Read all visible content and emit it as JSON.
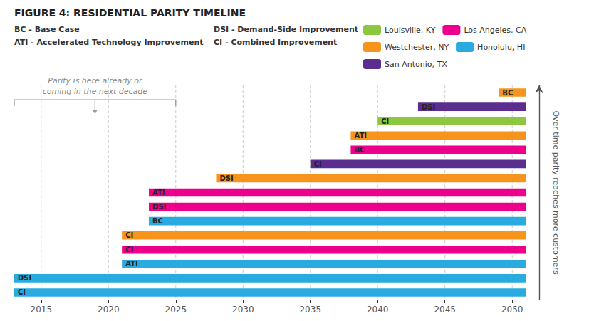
{
  "chart_data": {
    "type": "bar",
    "orientation": "horizontal",
    "title": "FIGURE 4: RESIDENTIAL PARITY TIMELINE",
    "ylabel": "Over time parity reaches more customers",
    "annotations": [
      "BC - Base Case",
      "ATI - Accelerated Technology Improvement",
      "DSI - Demand-Side Improvement",
      "CI - Combined Improvement"
    ],
    "bracket": {
      "text": "Parity is here already or\ncoming in the next decade",
      "x": [
        2013,
        2025
      ]
    },
    "categories": [
      null,
      null,
      null,
      null,
      null,
      null,
      null,
      null,
      null,
      null,
      null,
      null,
      null,
      null,
      null
    ],
    "series": [
      {
        "name": "Louisville, KY",
        "color": "#8dc63f",
        "values": [
          null,
          null,
          null,
          null,
          null,
          null,
          null,
          null,
          null,
          null,
          null,
          null,
          [
            2040,
            2051
          ],
          null,
          null
        ],
        "bar_labels": [
          null,
          null,
          null,
          null,
          null,
          null,
          null,
          null,
          null,
          null,
          null,
          null,
          "CI",
          null,
          null
        ]
      },
      {
        "name": "Los Angeles, CA",
        "color": "#ec008c",
        "values": [
          null,
          null,
          null,
          [
            2021,
            2051
          ],
          null,
          null,
          [
            2023,
            2051
          ],
          [
            2023,
            2051
          ],
          null,
          null,
          [
            2038,
            2051
          ],
          null,
          null,
          null,
          null
        ],
        "bar_labels": [
          null,
          null,
          null,
          "CI",
          null,
          null,
          "DSI",
          "ATI",
          null,
          null,
          "BC",
          null,
          null,
          null,
          null
        ]
      },
      {
        "name": "Westchester, NY",
        "color": "#f7941d",
        "values": [
          null,
          null,
          null,
          null,
          [
            2021,
            2051
          ],
          null,
          null,
          null,
          [
            2028,
            2051
          ],
          null,
          null,
          [
            2038,
            2051
          ],
          null,
          null,
          [
            2049,
            2051
          ]
        ],
        "bar_labels": [
          null,
          null,
          null,
          null,
          "CI",
          null,
          null,
          null,
          "DSI",
          null,
          null,
          "ATI",
          null,
          null,
          "BC"
        ]
      },
      {
        "name": "Honolulu, HI",
        "color": "#29abe2",
        "values": [
          [
            2013,
            2051
          ],
          [
            2013,
            2051
          ],
          [
            2021,
            2051
          ],
          null,
          null,
          [
            2023,
            2051
          ],
          null,
          null,
          null,
          null,
          null,
          null,
          null,
          null,
          null
        ],
        "bar_labels": [
          "CI",
          "DSI",
          "ATI",
          null,
          null,
          "BC",
          null,
          null,
          null,
          null,
          null,
          null,
          null,
          null,
          null
        ]
      },
      {
        "name": "San Antonio, TX",
        "color": "#5b2d8e",
        "values": [
          null,
          null,
          null,
          null,
          null,
          null,
          null,
          null,
          null,
          [
            2035,
            2051
          ],
          null,
          null,
          null,
          [
            2043,
            2051
          ],
          null
        ],
        "bar_labels": [
          null,
          null,
          null,
          null,
          null,
          null,
          null,
          null,
          null,
          "CI",
          null,
          null,
          null,
          "DSI",
          null
        ]
      }
    ],
    "xlim": [
      2013,
      2052
    ],
    "xticks": [
      2015,
      2020,
      2025,
      2030,
      2035,
      2040,
      2045,
      2050
    ],
    "grid": true,
    "legend": "top",
    "tick_labels": "x"
  }
}
